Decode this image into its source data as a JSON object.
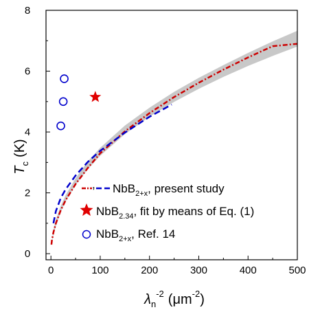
{
  "chart_data": {
    "type": "line",
    "xlabel": {
      "symbol": "λ",
      "sub": "n",
      "sup": "-2",
      "unit": "(μm",
      "unit_sup": "-2",
      "unit_end": ")"
    },
    "ylabel": {
      "symbol": "T",
      "sub": "c",
      "unit": "(K)"
    },
    "xlim": [
      -10,
      500
    ],
    "ylim": [
      -0.2,
      8
    ],
    "x_ticks": [
      0,
      100,
      200,
      300,
      400,
      500
    ],
    "y_ticks": [
      0,
      2,
      4,
      6,
      8
    ],
    "grid": false,
    "legend_position": "bottom-right",
    "colors": {
      "fit_line": "#cc0000",
      "present_line": "#0000cc",
      "band": "#c8c8c8",
      "star": "#e00000",
      "circles": "#0000cc"
    },
    "band": {
      "x": [
        1,
        5,
        10,
        20,
        30,
        50,
        75,
        100,
        150,
        200,
        250,
        300,
        350,
        400,
        450,
        500
      ],
      "y_low": [
        0.25,
        0.63,
        0.9,
        1.37,
        1.72,
        2.26,
        2.78,
        3.22,
        3.93,
        4.5,
        4.99,
        5.42,
        5.81,
        6.17,
        6.5,
        6.81
      ],
      "y_high": [
        0.35,
        0.79,
        1.12,
        1.57,
        1.93,
        2.48,
        3.04,
        3.48,
        4.21,
        4.8,
        5.32,
        5.78,
        6.2,
        6.6,
        6.98,
        7.33
      ]
    },
    "series": [
      {
        "name": "present study (fit)",
        "x": [
          1,
          2,
          5,
          10,
          20,
          30,
          50,
          75,
          100,
          150,
          200,
          250,
          300,
          350,
          400,
          450,
          500
        ],
        "y": [
          0.3,
          0.44,
          0.7,
          1.0,
          1.43,
          1.76,
          2.29,
          2.82,
          3.3,
          4.02,
          4.62,
          5.15,
          5.62,
          6.05,
          6.45,
          6.82,
          6.9
        ]
      },
      {
        "name": "present study (data)",
        "x": [
          5,
          10,
          20,
          30,
          50,
          75,
          100,
          150,
          200,
          245
        ],
        "y": [
          1.0,
          1.4,
          1.83,
          2.12,
          2.57,
          3.02,
          3.38,
          3.98,
          4.5,
          4.9
        ]
      }
    ],
    "star_point": {
      "x": 90,
      "y": 5.15
    },
    "ref_points": [
      {
        "x": 20,
        "y": 4.2
      },
      {
        "x": 25,
        "y": 5.0
      },
      {
        "x": 27,
        "y": 5.75
      }
    ],
    "legend": [
      {
        "kind": "lines",
        "text": "NbB",
        "sub": "2+x",
        "rest": ", present study",
        "prefix": ","
      },
      {
        "kind": "star",
        "text": "NbB",
        "sub": "2.34",
        "rest": ", fit by means of Eq. (1)"
      },
      {
        "kind": "circle",
        "text": "NbB",
        "sub": "2+x",
        "rest": ", Ref. 14"
      }
    ]
  }
}
